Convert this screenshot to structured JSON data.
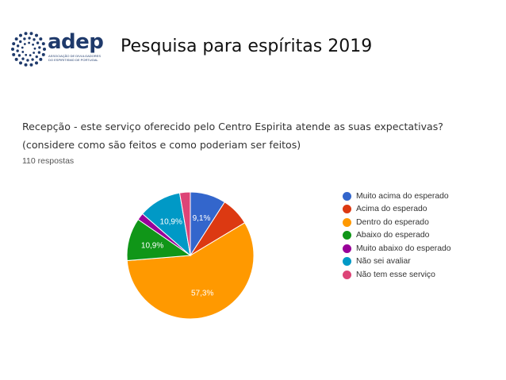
{
  "header": {
    "logo_name": "adep",
    "logo_subtitle": "ASSOCIAÇÃO DE DIVULGADORES DO ESPIRITISMO DE PORTUGAL",
    "title": "Pesquisa para espíritas  2019"
  },
  "survey": {
    "question_line1": "Recepção - este serviço oferecido pelo Centro Espirita atende as suas expectativas?",
    "question_line2": "(considere como são feitos e como poderiam ser feitos)",
    "responses": "110 respostas"
  },
  "chart_data": {
    "type": "pie",
    "title": "Recepção - este serviço oferecido pelo Centro Espirita atende as suas expectativas? (considere como são feitos e como poderiam ser feitos)",
    "legend_position": "right",
    "slices": [
      {
        "label": "Muito acima do esperado",
        "value": 9.1,
        "color": "#3366cc",
        "data_label": "9,1%"
      },
      {
        "label": "Acima do esperado",
        "value": 7.3,
        "color": "#dc3912",
        "data_label": ""
      },
      {
        "label": "Dentro do esperado",
        "value": 57.3,
        "color": "#ff9900",
        "data_label": "57,3%"
      },
      {
        "label": "Abaixo do esperado",
        "value": 10.9,
        "color": "#109618",
        "data_label": "10,9%"
      },
      {
        "label": "Muito abaixo do esperado",
        "value": 1.8,
        "color": "#990099",
        "data_label": ""
      },
      {
        "label": "Não sei avaliar",
        "value": 10.9,
        "color": "#0099c6",
        "data_label": "10,9%"
      },
      {
        "label": "Não tem esse serviço",
        "value": 2.7,
        "color": "#dd4477",
        "data_label": ""
      }
    ]
  }
}
